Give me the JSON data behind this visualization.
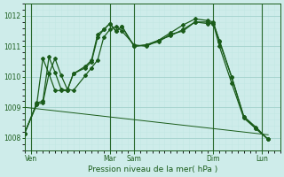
{
  "xlabel": "Pression niveau de la mer( hPa )",
  "background_color": "#ceecea",
  "grid_color_major": "#a8d5d0",
  "grid_color_minor": "#c2e8e4",
  "line_color": "#1a5c1a",
  "ylim": [
    1007.6,
    1012.4
  ],
  "xlim": [
    0,
    21
  ],
  "yticks": [
    1008,
    1009,
    1010,
    1011,
    1012
  ],
  "xtick_positions": [
    0.5,
    7.0,
    9.0,
    15.5,
    19.5
  ],
  "xtick_labels": [
    "Ven",
    "Mar",
    "Sam",
    "Dim",
    "Lun"
  ],
  "vline_positions": [
    0.5,
    7.0,
    9.0,
    15.5,
    19.5
  ],
  "series1": [
    [
      0,
      1008.15
    ],
    [
      1,
      1009.1
    ],
    [
      1.5,
      1009.15
    ],
    [
      2,
      1010.1
    ],
    [
      2.5,
      1010.6
    ],
    [
      3,
      1010.05
    ],
    [
      3.5,
      1009.6
    ],
    [
      4,
      1009.55
    ],
    [
      5,
      1010.05
    ],
    [
      5.5,
      1010.3
    ],
    [
      6,
      1010.55
    ],
    [
      6.5,
      1011.3
    ],
    [
      7,
      1011.55
    ],
    [
      7.5,
      1011.65
    ],
    [
      8,
      1011.5
    ],
    [
      9,
      1011.05
    ],
    [
      10,
      1011.0
    ],
    [
      11,
      1011.2
    ],
    [
      12,
      1011.35
    ],
    [
      13,
      1011.55
    ],
    [
      14,
      1011.8
    ],
    [
      15,
      1011.75
    ],
    [
      15.5,
      1011.75
    ],
    [
      16,
      1011.0
    ],
    [
      17,
      1009.8
    ],
    [
      18,
      1008.65
    ],
    [
      19,
      1008.3
    ],
    [
      20,
      1007.95
    ]
  ],
  "series2": [
    [
      0,
      1008.15
    ],
    [
      1,
      1009.15
    ],
    [
      1.5,
      1009.2
    ],
    [
      2,
      1010.65
    ],
    [
      2.5,
      1010.15
    ],
    [
      3,
      1009.6
    ],
    [
      3.5,
      1009.55
    ],
    [
      4,
      1010.1
    ],
    [
      5,
      1010.3
    ],
    [
      5.5,
      1010.5
    ],
    [
      6,
      1011.3
    ],
    [
      6.5,
      1011.55
    ],
    [
      7,
      1011.75
    ],
    [
      7.5,
      1011.5
    ],
    [
      8,
      1011.65
    ],
    [
      9,
      1011.0
    ],
    [
      10,
      1011.05
    ],
    [
      11,
      1011.15
    ],
    [
      12,
      1011.4
    ],
    [
      13,
      1011.5
    ],
    [
      14,
      1011.8
    ],
    [
      15,
      1011.8
    ],
    [
      15.5,
      1011.75
    ],
    [
      16,
      1011.2
    ],
    [
      17,
      1010.0
    ],
    [
      18,
      1008.7
    ],
    [
      19,
      1008.35
    ],
    [
      20,
      1007.95
    ]
  ],
  "series3": [
    [
      0,
      1008.15
    ],
    [
      1,
      1009.1
    ],
    [
      1.5,
      1010.6
    ],
    [
      2,
      1010.1
    ],
    [
      2.5,
      1009.55
    ],
    [
      3,
      1009.55
    ],
    [
      3.5,
      1009.55
    ],
    [
      4,
      1010.1
    ],
    [
      5,
      1010.35
    ],
    [
      5.5,
      1010.55
    ],
    [
      6,
      1011.4
    ],
    [
      6.5,
      1011.55
    ],
    [
      7,
      1011.75
    ],
    [
      7.5,
      1011.5
    ],
    [
      8,
      1011.65
    ],
    [
      9,
      1011.0
    ],
    [
      10,
      1011.05
    ],
    [
      11,
      1011.2
    ],
    [
      12,
      1011.45
    ],
    [
      13,
      1011.7
    ],
    [
      14,
      1011.9
    ],
    [
      15,
      1011.85
    ],
    [
      15.5,
      1011.8
    ],
    [
      16,
      1011.15
    ],
    [
      17,
      1010.0
    ],
    [
      18,
      1008.7
    ],
    [
      19,
      1008.3
    ],
    [
      20,
      1007.95
    ]
  ],
  "series4_diagonal": [
    [
      0,
      1009.0
    ],
    [
      20,
      1008.1
    ]
  ]
}
